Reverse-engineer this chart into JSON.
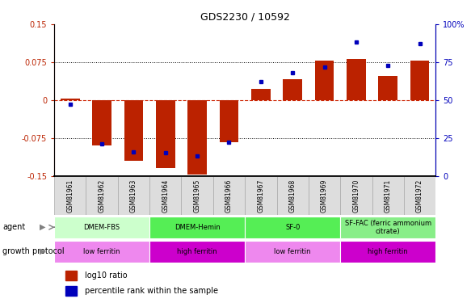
{
  "title": "GDS2230 / 10592",
  "samples": [
    "GSM81961",
    "GSM81962",
    "GSM81963",
    "GSM81964",
    "GSM81965",
    "GSM81966",
    "GSM81967",
    "GSM81968",
    "GSM81969",
    "GSM81970",
    "GSM81971",
    "GSM81972"
  ],
  "log10_ratio": [
    0.003,
    -0.09,
    -0.12,
    -0.135,
    -0.148,
    -0.083,
    0.022,
    0.042,
    0.078,
    0.082,
    0.048,
    0.078
  ],
  "percentile": [
    47,
    21,
    16,
    15,
    13,
    22,
    62,
    68,
    72,
    88,
    73,
    87
  ],
  "ylim_left": [
    -0.15,
    0.15
  ],
  "ylim_right": [
    0,
    100
  ],
  "yticks_left": [
    -0.15,
    -0.075,
    0,
    0.075,
    0.15
  ],
  "yticks_right": [
    0,
    25,
    50,
    75,
    100
  ],
  "bar_color": "#bb2200",
  "dot_color": "#0000bb",
  "hline_color": "#cc2200",
  "dotted_lines": [
    -0.075,
    0.075
  ],
  "agent_groups": [
    {
      "label": "DMEM-FBS",
      "start": 0,
      "end": 3,
      "color": "#ccffcc"
    },
    {
      "label": "DMEM-Hemin",
      "start": 3,
      "end": 6,
      "color": "#55ee55"
    },
    {
      "label": "SF-0",
      "start": 6,
      "end": 9,
      "color": "#55ee55"
    },
    {
      "label": "SF-FAC (ferric ammonium\ncitrate)",
      "start": 9,
      "end": 12,
      "color": "#88ee88"
    }
  ],
  "growth_groups": [
    {
      "label": "low ferritin",
      "start": 0,
      "end": 3,
      "color": "#ee88ee"
    },
    {
      "label": "high ferritin",
      "start": 3,
      "end": 6,
      "color": "#cc00cc"
    },
    {
      "label": "low ferritin",
      "start": 6,
      "end": 9,
      "color": "#ee88ee"
    },
    {
      "label": "high ferritin",
      "start": 9,
      "end": 12,
      "color": "#cc00cc"
    }
  ],
  "legend_items": [
    {
      "label": "log10 ratio",
      "color": "#bb2200"
    },
    {
      "label": "percentile rank within the sample",
      "color": "#0000bb"
    }
  ],
  "sample_box_color": "#dddddd",
  "sample_box_edge": "#aaaaaa"
}
